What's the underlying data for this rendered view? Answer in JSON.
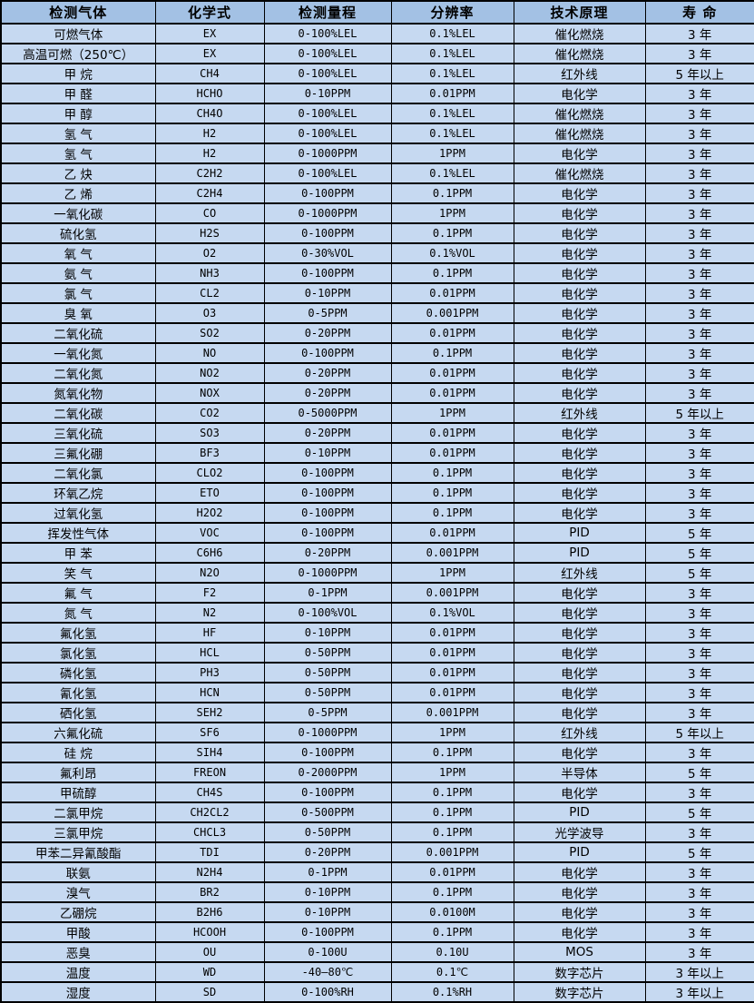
{
  "colors": {
    "header_bg": "#a3c1e4",
    "body_bg": "#c6d9f1",
    "border": "#000000",
    "text": "#000000"
  },
  "table": {
    "columns": [
      "检测气体",
      "化学式",
      "检测量程",
      "分辨率",
      "技术原理",
      "寿 命"
    ],
    "rows": [
      [
        "可燃气体",
        "EX",
        "0-100%LEL",
        "0.1%LEL",
        "催化燃烧",
        "3 年"
      ],
      [
        "高温可燃（250℃）",
        "EX",
        "0-100%LEL",
        "0.1%LEL",
        "催化燃烧",
        "3 年"
      ],
      [
        "甲 烷",
        "CH4",
        "0-100%LEL",
        "0.1%LEL",
        "红外线",
        "5 年以上"
      ],
      [
        "甲 醛",
        "HCHO",
        "0-10PPM",
        "0.01PPM",
        "电化学",
        "3 年"
      ],
      [
        "甲 醇",
        "CH4O",
        "0-100%LEL",
        "0.1%LEL",
        "催化燃烧",
        "3 年"
      ],
      [
        "氢 气",
        "H2",
        "0-100%LEL",
        "0.1%LEL",
        "催化燃烧",
        "3 年"
      ],
      [
        "氢 气",
        "H2",
        "0-1000PPM",
        "1PPM",
        "电化学",
        "3 年"
      ],
      [
        "乙 炔",
        "C2H2",
        "0-100%LEL",
        "0.1%LEL",
        "催化燃烧",
        "3 年"
      ],
      [
        "乙 烯",
        "C2H4",
        "0-100PPM",
        "0.1PPM",
        "电化学",
        "3 年"
      ],
      [
        "一氧化碳",
        "CO",
        "0-1000PPM",
        "1PPM",
        "电化学",
        "3 年"
      ],
      [
        "硫化氢",
        "H2S",
        "0-100PPM",
        "0.1PPM",
        "电化学",
        "3 年"
      ],
      [
        "氧 气",
        "O2",
        "0-30%VOL",
        "0.1%VOL",
        "电化学",
        "3 年"
      ],
      [
        "氨 气",
        "NH3",
        "0-100PPM",
        "0.1PPM",
        "电化学",
        "3 年"
      ],
      [
        "氯 气",
        "CL2",
        "0-10PPM",
        "0.01PPM",
        "电化学",
        "3 年"
      ],
      [
        "臭 氧",
        "O3",
        "0-5PPM",
        "0.001PPM",
        "电化学",
        "3 年"
      ],
      [
        "二氧化硫",
        "SO2",
        "0-20PPM",
        "0.01PPM",
        "电化学",
        "3 年"
      ],
      [
        "一氧化氮",
        "NO",
        "0-100PPM",
        "0.1PPM",
        "电化学",
        "3 年"
      ],
      [
        "二氧化氮",
        "NO2",
        "0-20PPM",
        "0.01PPM",
        "电化学",
        "3 年"
      ],
      [
        "氮氧化物",
        "NOX",
        "0-20PPM",
        "0.01PPM",
        "电化学",
        "3 年"
      ],
      [
        "二氧化碳",
        "CO2",
        "0-5000PPM",
        "1PPM",
        "红外线",
        "5 年以上"
      ],
      [
        "三氧化硫",
        "SO3",
        "0-20PPM",
        "0.01PPM",
        "电化学",
        "3 年"
      ],
      [
        "三氟化硼",
        "BF3",
        "0-10PPM",
        "0.01PPM",
        "电化学",
        "3 年"
      ],
      [
        "二氧化氯",
        "CLO2",
        "0-100PPM",
        "0.1PPM",
        "电化学",
        "3 年"
      ],
      [
        "环氧乙烷",
        "ETO",
        "0-100PPM",
        "0.1PPM",
        "电化学",
        "3 年"
      ],
      [
        "过氧化氢",
        "H2O2",
        "0-100PPM",
        "0.1PPM",
        "电化学",
        "3 年"
      ],
      [
        "挥发性气体",
        "VOC",
        "0-100PPM",
        "0.01PPM",
        "PID",
        "5 年"
      ],
      [
        "甲 苯",
        "C6H6",
        "0-20PPM",
        "0.001PPM",
        "PID",
        "5 年"
      ],
      [
        "笑 气",
        "N2O",
        "0-1000PPM",
        "1PPM",
        "红外线",
        "5 年"
      ],
      [
        "氟 气",
        "F2",
        "0-1PPM",
        "0.001PPM",
        "电化学",
        "3 年"
      ],
      [
        "氮 气",
        "N2",
        "0-100%VOL",
        "0.1%VOL",
        "电化学",
        "3 年"
      ],
      [
        "氟化氢",
        "HF",
        "0-10PPM",
        "0.01PPM",
        "电化学",
        "3 年"
      ],
      [
        "氯化氢",
        "HCL",
        "0-50PPM",
        "0.01PPM",
        "电化学",
        "3 年"
      ],
      [
        "磷化氢",
        "PH3",
        "0-50PPM",
        "0.01PPM",
        "电化学",
        "3 年"
      ],
      [
        "氰化氢",
        "HCN",
        "0-50PPM",
        "0.01PPM",
        "电化学",
        "3 年"
      ],
      [
        "硒化氢",
        "SEH2",
        "0-5PPM",
        "0.001PPM",
        "电化学",
        "3 年"
      ],
      [
        "六氟化硫",
        "SF6",
        "0-1000PPM",
        "1PPM",
        "红外线",
        "5 年以上"
      ],
      [
        "硅 烷",
        "SIH4",
        "0-100PPM",
        "0.1PPM",
        "电化学",
        "3 年"
      ],
      [
        "氟利昂",
        "FREON",
        "0-2000PPM",
        "1PPM",
        "半导体",
        "5 年"
      ],
      [
        "甲硫醇",
        "CH4S",
        "0-100PPM",
        "0.1PPM",
        "电化学",
        "3 年"
      ],
      [
        "二氯甲烷",
        "CH2CL2",
        "0-500PPM",
        "0.1PPM",
        "PID",
        "5 年"
      ],
      [
        "三氯甲烷",
        "CHCL3",
        "0-50PPM",
        "0.1PPM",
        "光学波导",
        "3 年"
      ],
      [
        "甲苯二异氰酸酯",
        "TDI",
        "0-20PPM",
        "0.001PPM",
        "PID",
        "5 年"
      ],
      [
        "联氨",
        "N2H4",
        "0-1PPM",
        "0.01PPM",
        "电化学",
        "3 年"
      ],
      [
        "溴气",
        "BR2",
        "0-10PPM",
        "0.1PPM",
        "电化学",
        "3 年"
      ],
      [
        "乙硼烷",
        "B2H6",
        "0-10PPM",
        "0.0100M",
        "电化学",
        "3 年"
      ],
      [
        "甲酸",
        "HCOOH",
        "0-100PPM",
        "0.1PPM",
        "电化学",
        "3 年"
      ],
      [
        "恶臭",
        "OU",
        "0-100U",
        "0.10U",
        "MOS",
        "3 年"
      ],
      [
        "温度",
        "WD",
        "-40—80℃",
        "0.1℃",
        "数字芯片",
        "3 年以上"
      ],
      [
        "湿度",
        "SD",
        "0-100%RH",
        "0.1%RH",
        "数字芯片",
        "3 年以上"
      ]
    ]
  }
}
